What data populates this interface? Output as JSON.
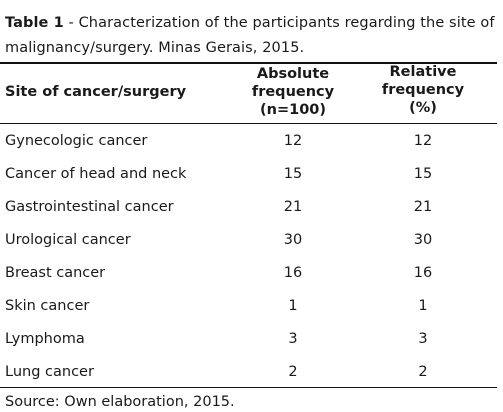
{
  "caption": {
    "label": "Table 1",
    "text": " - Characterization of the participants regarding the site of malignancy/surgery. Minas Gerais, 2015."
  },
  "table": {
    "headers": {
      "site": "Site of cancer/surgery",
      "absolute_line1": "Absolute",
      "absolute_line2": "frequency",
      "absolute_line3": "(n=100)",
      "relative_line1": "Relative",
      "relative_line2": "frequency",
      "relative_line3": "(%)"
    },
    "rows": [
      {
        "site": "Gynecologic cancer",
        "absolute": "12",
        "relative": "12"
      },
      {
        "site": "Cancer of head and neck",
        "absolute": "15",
        "relative": "15"
      },
      {
        "site": "Gastrointestinal cancer",
        "absolute": "21",
        "relative": "21"
      },
      {
        "site": "Urological cancer",
        "absolute": "30",
        "relative": "30"
      },
      {
        "site": "Breast cancer",
        "absolute": "16",
        "relative": "16"
      },
      {
        "site": "Skin cancer",
        "absolute": "1",
        "relative": "1"
      },
      {
        "site": "Lymphoma",
        "absolute": "3",
        "relative": "3"
      },
      {
        "site": "Lung cancer",
        "absolute": "2",
        "relative": "2"
      }
    ]
  },
  "source": "Source: Own elaboration, 2015."
}
